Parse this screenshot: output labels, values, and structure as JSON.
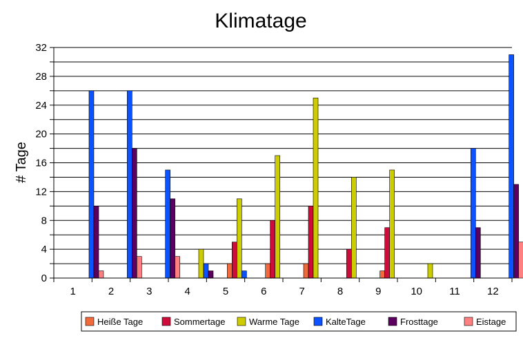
{
  "chart_data": {
    "type": "bar",
    "title": "Klimatage",
    "ylabel": "# Tage",
    "xlabel": "",
    "categories": [
      "1",
      "2",
      "3",
      "4",
      "5",
      "6",
      "7",
      "8",
      "9",
      "10",
      "11",
      "12"
    ],
    "ylim": [
      0,
      32
    ],
    "yticks": [
      "0",
      "4",
      "8",
      "12",
      "16",
      "20",
      "24",
      "28",
      "32"
    ],
    "grid": true,
    "legend_position": "bottom",
    "series": [
      {
        "name": "Heiße Tage",
        "color": "#f06a3c",
        "values": [
          0,
          0,
          0,
          0,
          2,
          2,
          2,
          0,
          1,
          0,
          0,
          0
        ]
      },
      {
        "name": "Sommertage",
        "color": "#cc0d3c",
        "values": [
          0,
          0,
          0,
          0,
          5,
          8,
          10,
          4,
          7,
          0,
          0,
          0
        ]
      },
      {
        "name": "Warme Tage",
        "color": "#cccc00",
        "values": [
          0,
          0,
          0,
          4,
          11,
          17,
          25,
          14,
          15,
          2,
          0,
          0
        ]
      },
      {
        "name": "KalteTage",
        "color": "#0d52ff",
        "values": [
          26,
          26,
          15,
          2,
          1,
          0,
          0,
          0,
          0,
          0,
          18,
          31
        ]
      },
      {
        "name": "Frosttage",
        "color": "#5c0060",
        "values": [
          10,
          18,
          11,
          1,
          0,
          0,
          0,
          0,
          0,
          0,
          7,
          13
        ]
      },
      {
        "name": "Eistage",
        "color": "#ff8080",
        "values": [
          1,
          3,
          3,
          0,
          0,
          0,
          0,
          0,
          0,
          0,
          0,
          5
        ]
      }
    ]
  }
}
